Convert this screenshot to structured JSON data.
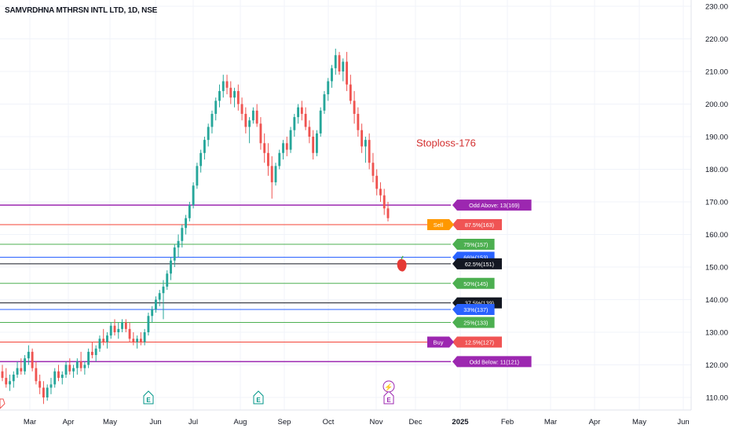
{
  "window": {
    "title": "SAMVRDHNA MTHRSN INTL LTD, 1D, NSE"
  },
  "chart_data": {
    "type": "candlestick",
    "symbol": "SAMVRDHNA MTHRSN INTL LTD, 1D, NSE",
    "y_axis": {
      "min": 105,
      "max": 232,
      "ticks": [
        "230.00",
        "220.00",
        "210.00",
        "200.00",
        "190.00",
        "180.00",
        "170.00",
        "160.00",
        "150.00",
        "140.00",
        "130.00",
        "120.00",
        "110.00"
      ],
      "side": "right"
    },
    "x_axis": {
      "labels": [
        "Mar",
        "Apr",
        "May",
        "Jun",
        "Jul",
        "Aug",
        "Sep",
        "Oct",
        "Nov",
        "Dec",
        "2025",
        "Feb",
        "Mar",
        "Apr",
        "May",
        "Jun"
      ]
    },
    "colors": {
      "up": "#26a69a",
      "down": "#ef5350",
      "purple": "#9c27b0",
      "red_line": "#f44336",
      "green_line": "#4caf50",
      "blue_line": "#2962ff",
      "black_line": "#131722",
      "annotation": "#d32f2f"
    },
    "annotation": {
      "text": "Stoploss-176",
      "price": 188
    },
    "levels": [
      {
        "price": 169,
        "color": "#9c27b0",
        "label": "Odd Above: 13(169)",
        "label_bg": "#9c27b0",
        "line_width": 1.5
      },
      {
        "price": 163,
        "color": "#f44336",
        "label": "87.5%(163)",
        "label_bg": "#f05454",
        "line_width": 1,
        "side_tag": "Sell",
        "side_bg": "#ff9800"
      },
      {
        "price": 157,
        "color": "#4caf50",
        "label": "75%(157)",
        "label_bg": "#4caf50",
        "line_width": 1
      },
      {
        "price": 153,
        "color": "#2962ff",
        "label": "66%(153)",
        "label_bg": "#2962ff",
        "line_width": 1
      },
      {
        "price": 151,
        "color": "#131722",
        "label": "62.5%(151)",
        "label_bg": "#131722",
        "line_width": 1
      },
      {
        "price": 145,
        "color": "#4caf50",
        "label": "50%(145)",
        "label_bg": "#4caf50",
        "line_width": 1
      },
      {
        "price": 139,
        "color": "#131722",
        "label": "37.5%(139)",
        "label_bg": "#131722",
        "line_width": 1
      },
      {
        "price": 137,
        "color": "#2962ff",
        "label": "33%(137)",
        "label_bg": "#2962ff",
        "line_width": 1
      },
      {
        "price": 133,
        "color": "#4caf50",
        "label": "25%(133)",
        "label_bg": "#4caf50",
        "line_width": 1
      },
      {
        "price": 127,
        "color": "#f44336",
        "label": "12.5%(127)",
        "label_bg": "#f05454",
        "line_width": 1,
        "side_tag": "Buy",
        "side_bg": "#9c27b0"
      },
      {
        "price": 121,
        "color": "#9c27b0",
        "label": "Odd Below: 11(121)",
        "label_bg": "#9c27b0",
        "line_width": 1.5
      }
    ],
    "event_markers": [
      {
        "type": "earnings",
        "glyph": "E",
        "date_index": 63
      },
      {
        "type": "earnings",
        "glyph": "E",
        "date_index": 100
      },
      {
        "type": "earnings",
        "glyph": "E",
        "date_index": 180
      },
      {
        "type": "dividend",
        "glyph": "⚡",
        "date_index": 180
      }
    ],
    "candles": [
      [
        118,
        120,
        115,
        116
      ],
      [
        116,
        119,
        113,
        114
      ],
      [
        114,
        117,
        112,
        115
      ],
      [
        115,
        118,
        113,
        117
      ],
      [
        117,
        121,
        116,
        119
      ],
      [
        119,
        122,
        117,
        118
      ],
      [
        118,
        123,
        117,
        122
      ],
      [
        122,
        126,
        120,
        124
      ],
      [
        124,
        125,
        118,
        119
      ],
      [
        119,
        121,
        114,
        115
      ],
      [
        115,
        117,
        111,
        113
      ],
      [
        113,
        115,
        108,
        110
      ],
      [
        110,
        114,
        109,
        113
      ],
      [
        113,
        116,
        111,
        114
      ],
      [
        114,
        119,
        113,
        118
      ],
      [
        118,
        120,
        115,
        116
      ],
      [
        116,
        118,
        114,
        117
      ],
      [
        117,
        121,
        116,
        120
      ],
      [
        120,
        122,
        117,
        118
      ],
      [
        118,
        120,
        116,
        119
      ],
      [
        119,
        122,
        117,
        121
      ],
      [
        121,
        124,
        118,
        119
      ],
      [
        119,
        121,
        117,
        120
      ],
      [
        120,
        125,
        119,
        124
      ],
      [
        124,
        127,
        122,
        123
      ],
      [
        123,
        126,
        121,
        125
      ],
      [
        125,
        129,
        124,
        128
      ],
      [
        128,
        131,
        126,
        127
      ],
      [
        127,
        130,
        125,
        129
      ],
      [
        129,
        133,
        128,
        132
      ],
      [
        132,
        134,
        129,
        130
      ],
      [
        130,
        133,
        128,
        131
      ],
      [
        131,
        134,
        130,
        133
      ],
      [
        133,
        134,
        130,
        131
      ],
      [
        131,
        133,
        127,
        128
      ],
      [
        128,
        130,
        126,
        127
      ],
      [
        127,
        129,
        125,
        128
      ],
      [
        128,
        130,
        126,
        127
      ],
      [
        127,
        131,
        126,
        130
      ],
      [
        130,
        136,
        129,
        135
      ],
      [
        135,
        138,
        133,
        137
      ],
      [
        137,
        141,
        136,
        140
      ],
      [
        140,
        143,
        138,
        142
      ],
      [
        142,
        146,
        134,
        144
      ],
      [
        144,
        149,
        143,
        148
      ],
      [
        148,
        153,
        146,
        152
      ],
      [
        152,
        157,
        150,
        156
      ],
      [
        156,
        160,
        153,
        158
      ],
      [
        158,
        163,
        156,
        162
      ],
      [
        162,
        166,
        160,
        165
      ],
      [
        165,
        170,
        164,
        169
      ],
      [
        169,
        176,
        168,
        175
      ],
      [
        175,
        182,
        174,
        181
      ],
      [
        181,
        186,
        179,
        185
      ],
      [
        185,
        190,
        183,
        189
      ],
      [
        189,
        194,
        187,
        193
      ],
      [
        193,
        198,
        191,
        197
      ],
      [
        197,
        202,
        195,
        201
      ],
      [
        201,
        206,
        199,
        204
      ],
      [
        204,
        209,
        202,
        207
      ],
      [
        207,
        209,
        203,
        205
      ],
      [
        205,
        207,
        200,
        202
      ],
      [
        202,
        205,
        199,
        204
      ],
      [
        204,
        206,
        198,
        200
      ],
      [
        200,
        202,
        195,
        197
      ],
      [
        197,
        199,
        191,
        193
      ],
      [
        193,
        196,
        188,
        195
      ],
      [
        195,
        199,
        194,
        198
      ],
      [
        198,
        200,
        193,
        194
      ],
      [
        194,
        196,
        186,
        188
      ],
      [
        188,
        191,
        182,
        185
      ],
      [
        185,
        188,
        178,
        181
      ],
      [
        181,
        184,
        171,
        176
      ],
      [
        176,
        182,
        175,
        181
      ],
      [
        181,
        186,
        180,
        185
      ],
      [
        185,
        189,
        183,
        188
      ],
      [
        188,
        190,
        184,
        186
      ],
      [
        186,
        193,
        185,
        192
      ],
      [
        192,
        197,
        190,
        196
      ],
      [
        196,
        200,
        194,
        199
      ],
      [
        199,
        201,
        195,
        197
      ],
      [
        197,
        199,
        192,
        193
      ],
      [
        193,
        195,
        188,
        190
      ],
      [
        190,
        192,
        183,
        185
      ],
      [
        185,
        192,
        184,
        191
      ],
      [
        191,
        199,
        190,
        198
      ],
      [
        198,
        204,
        197,
        203
      ],
      [
        203,
        208,
        201,
        207
      ],
      [
        207,
        212,
        205,
        211
      ],
      [
        211,
        217,
        209,
        215
      ],
      [
        215,
        216,
        209,
        210
      ],
      [
        210,
        214,
        207,
        213
      ],
      [
        213,
        216,
        204,
        206
      ],
      [
        206,
        209,
        200,
        201
      ],
      [
        201,
        204,
        194,
        197
      ],
      [
        197,
        199,
        190,
        192
      ],
      [
        192,
        194,
        185,
        187
      ],
      [
        187,
        190,
        182,
        189
      ],
      [
        189,
        191,
        180,
        182
      ],
      [
        182,
        185,
        176,
        178
      ],
      [
        178,
        180,
        172,
        174
      ],
      [
        174,
        176,
        170,
        172
      ],
      [
        172,
        174,
        166,
        168
      ],
      [
        168,
        170,
        164,
        165
      ]
    ]
  }
}
